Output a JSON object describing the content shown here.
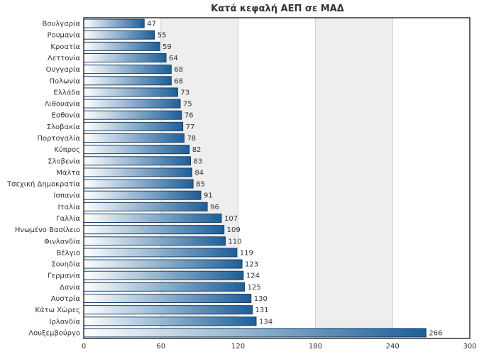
{
  "chart_data": {
    "type": "bar",
    "orientation": "horizontal",
    "title": "Κατά κεφαλή ΑΕΠ σε ΜΑΔ",
    "xlabel": "",
    "ylabel": "",
    "categories": [
      "Βουλγαρία",
      "Ρουμανία",
      "Κροατία",
      "Λεττονία",
      "Ουγγαρία",
      "Πολωνία",
      "Ελλάδα",
      "Λιθουανία",
      "Εσθονία",
      "Σλοβακία",
      "Πορτογαλία",
      "Κύπρος",
      "Σλοβενία",
      "Μάλτα",
      "Τσεχική Δημοκρατία",
      "Ισπανία",
      "Ιταλία",
      "Γαλλία",
      "Ηνωμένο Βασίλειο",
      "Φινλανδία",
      "Βέλγιο",
      "Σουηδία",
      "Γερμανία",
      "Δανία",
      "Αυστρία",
      "Κάτω Χώρες",
      "Ιρλανδία",
      "Λουξεμβούργο"
    ],
    "values": [
      47,
      55,
      59,
      64,
      68,
      68,
      73,
      75,
      76,
      77,
      78,
      82,
      83,
      84,
      85,
      91,
      96,
      107,
      109,
      110,
      119,
      123,
      124,
      125,
      130,
      131,
      134,
      266
    ],
    "xlim": [
      0,
      300
    ],
    "xticks": [
      "0",
      "60",
      "120",
      "180",
      "240",
      "300"
    ],
    "grid": "alternating-vertical-bands",
    "legend": "none",
    "colors": {
      "bar_light": "#ffffff",
      "bar_dark": "#1c5f99",
      "bar_border": "#1a3f66",
      "band": "#eeeeee",
      "grid_line": "#cccccc",
      "plot_border": "#333333",
      "text": "#333333"
    }
  }
}
